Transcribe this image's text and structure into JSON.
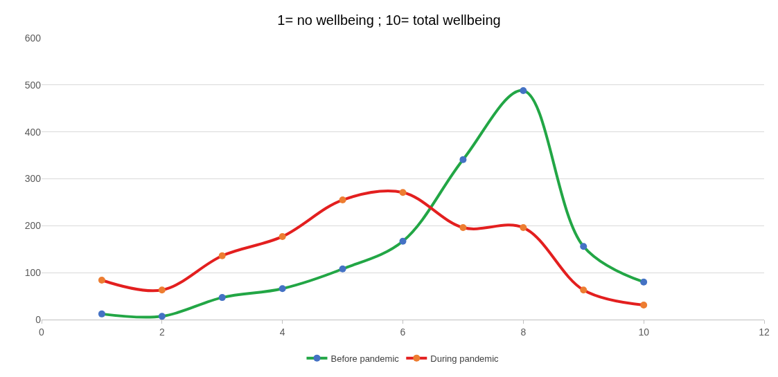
{
  "chart_data": {
    "type": "line",
    "title": "1= no wellbeing ; 10= total wellbeing",
    "x": [
      1,
      2,
      3,
      4,
      5,
      6,
      7,
      8,
      9,
      10
    ],
    "series": [
      {
        "name": "Before pandemic",
        "color": "#22a645",
        "colors": [
          "#4472c4",
          "#4472c4",
          "#4472c4",
          "#4472c4",
          "#4472c4",
          "#4472c4",
          "#4472c4",
          "#4472c4",
          "#4472c4",
          "#4472c4"
        ],
        "values": [
          12,
          7,
          47,
          66,
          108,
          167,
          341,
          488,
          156,
          80
        ]
      },
      {
        "name": "During pandemic",
        "color": "#e31f1f",
        "colors": [
          "#ed7d31",
          "#ed7d31",
          "#ed7d31",
          "#ed7d31",
          "#ed7d31",
          "#ed7d31",
          "#ed7d31",
          "#ed7d31",
          "#ed7d31",
          "#ed7d31"
        ],
        "values": [
          84,
          63,
          136,
          177,
          255,
          271,
          196,
          196,
          63,
          31
        ]
      }
    ],
    "xlim": [
      0,
      12
    ],
    "xticks": [
      0,
      2,
      4,
      6,
      8,
      10,
      12
    ],
    "ylim": [
      0,
      600
    ],
    "yticks": [
      0,
      100,
      200,
      300,
      400,
      500,
      600
    ],
    "grid": "y",
    "legend": "bottom",
    "marker": "circle",
    "line_style": "solid"
  }
}
